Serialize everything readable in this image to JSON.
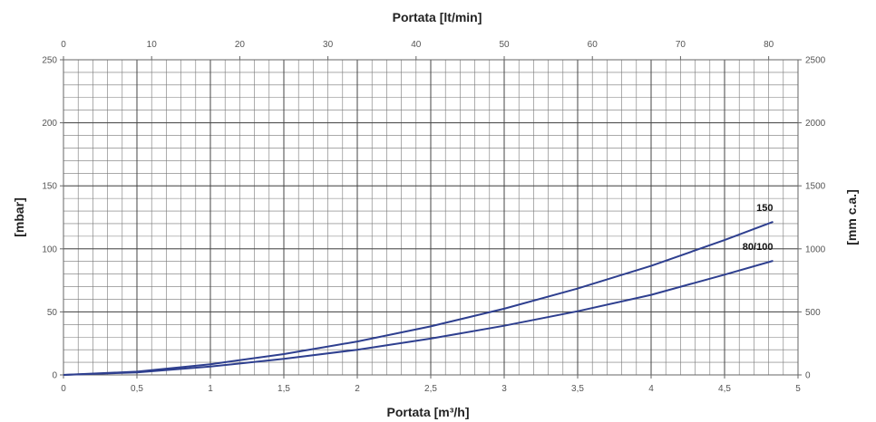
{
  "chart_data": {
    "type": "line",
    "title": "",
    "x_bottom": {
      "label": "Portata [m³/h]",
      "range": [
        0,
        5
      ],
      "ticks": [
        0,
        0.5,
        1,
        1.5,
        2,
        2.5,
        3,
        3.5,
        4,
        4.5,
        5
      ],
      "tick_labels": [
        "0",
        "0,5",
        "1",
        "1,5",
        "2",
        "2,5",
        "3",
        "3,5",
        "4",
        "4,5",
        "5"
      ],
      "minor_step": 0.1
    },
    "x_top": {
      "label": "Portata [lt/min]",
      "range": [
        0,
        83.33
      ],
      "ticks": [
        0,
        10,
        20,
        30,
        40,
        50,
        60,
        70,
        80
      ],
      "tick_labels": [
        "0",
        "10",
        "20",
        "30",
        "40",
        "50",
        "60",
        "70",
        "80"
      ]
    },
    "y_left": {
      "label": "[mbar]",
      "range": [
        0,
        250
      ],
      "ticks": [
        0,
        50,
        100,
        150,
        200,
        250
      ],
      "tick_labels": [
        "0",
        "50",
        "100",
        "150",
        "200",
        "250"
      ],
      "minor_step": 10
    },
    "y_right": {
      "label": "[mm c.a.]",
      "range": [
        0,
        2500
      ],
      "ticks": [
        0,
        500,
        1000,
        1500,
        2000,
        2500
      ],
      "tick_labels": [
        "0",
        "500",
        "1000",
        "1500",
        "2000",
        "2500"
      ]
    },
    "grid": true,
    "line_color": "#2e3f8f",
    "series": [
      {
        "name": "150",
        "x": [
          0,
          0.5,
          1,
          1.5,
          2,
          2.5,
          3,
          3.5,
          4,
          4.5,
          4.83
        ],
        "y": [
          0,
          2.6,
          8.5,
          16.5,
          26.5,
          38.5,
          52.5,
          68.5,
          86.5,
          107,
          121.5
        ]
      },
      {
        "name": "80/100",
        "x": [
          0,
          0.5,
          1,
          1.5,
          2,
          2.5,
          3,
          3.5,
          4,
          4.5,
          4.83
        ],
        "y": [
          0,
          2.0,
          6.6,
          12.8,
          20,
          28.8,
          39,
          50.5,
          63.5,
          79.5,
          90.5
        ]
      }
    ]
  }
}
